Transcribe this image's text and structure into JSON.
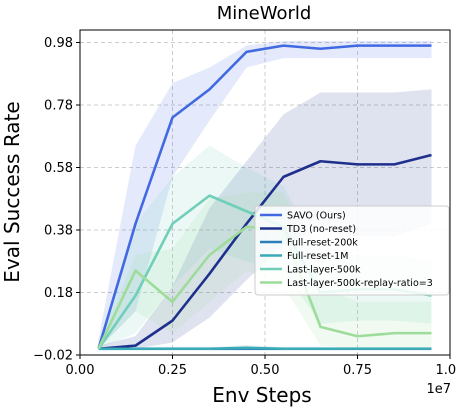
{
  "chart_data": {
    "type": "line",
    "title": "MineWorld",
    "xlabel": "Env Steps",
    "ylabel": "Eval Success Rate",
    "x_multiplier_label": "1e7",
    "xlim": [
      0.0,
      1.0
    ],
    "ylim": [
      -0.02,
      1.02
    ],
    "xticks": [
      0.0,
      0.25,
      0.5,
      0.75,
      1.0
    ],
    "xtick_labels": [
      "0.00",
      "0.25",
      "0.50",
      "0.75",
      "1.00"
    ],
    "yticks": [
      -0.02,
      0.18,
      0.38,
      0.58,
      0.78,
      0.98
    ],
    "ytick_labels": [
      "−0.02",
      "0.18",
      "0.38",
      "0.58",
      "0.78",
      "0.98"
    ],
    "grid": true,
    "legend_position": "lower-right",
    "x": [
      0.05,
      0.15,
      0.25,
      0.35,
      0.45,
      0.55,
      0.65,
      0.75,
      0.85,
      0.95
    ],
    "series": [
      {
        "name": "SAVO (Ours)",
        "color": "#4169e1",
        "values": [
          0.0,
          0.4,
          0.74,
          0.83,
          0.95,
          0.97,
          0.96,
          0.97,
          0.97,
          0.97
        ],
        "band_upper": [
          0.03,
          0.65,
          0.85,
          0.9,
          0.97,
          0.985,
          0.985,
          0.985,
          0.985,
          0.985
        ],
        "band_lower": [
          0.0,
          0.12,
          0.55,
          0.73,
          0.9,
          0.93,
          0.93,
          0.93,
          0.93,
          0.93
        ]
      },
      {
        "name": "TD3 (no-reset)",
        "color": "#1f2f8c",
        "values": [
          0.0,
          0.01,
          0.09,
          0.24,
          0.4,
          0.55,
          0.6,
          0.59,
          0.59,
          0.62
        ],
        "band_upper": [
          0.01,
          0.04,
          0.2,
          0.45,
          0.6,
          0.75,
          0.82,
          0.82,
          0.82,
          0.83
        ],
        "band_lower": [
          0.0,
          0.0,
          0.02,
          0.1,
          0.22,
          0.33,
          0.38,
          0.36,
          0.36,
          0.4
        ]
      },
      {
        "name": "Full-reset-200k",
        "color": "#2a7fb8",
        "values": [
          0.0,
          0.0,
          0.0,
          0.0,
          0.0,
          0.0,
          0.0,
          0.0,
          0.0,
          0.0
        ],
        "band_upper": [
          0.005,
          0.005,
          0.005,
          0.005,
          0.005,
          0.005,
          0.005,
          0.005,
          0.005,
          0.005
        ],
        "band_lower": [
          -0.005,
          -0.005,
          -0.005,
          -0.005,
          -0.005,
          -0.005,
          -0.005,
          -0.005,
          -0.005,
          -0.005
        ]
      },
      {
        "name": "Full-reset-1M",
        "color": "#3aa9b8",
        "values": [
          0.0,
          0.0,
          0.0,
          0.0,
          0.003,
          0.0,
          0.0,
          0.0,
          0.0,
          0.0
        ],
        "band_upper": [
          0.005,
          0.005,
          0.005,
          0.005,
          0.012,
          0.005,
          0.005,
          0.005,
          0.005,
          0.005
        ],
        "band_lower": [
          -0.005,
          -0.005,
          -0.005,
          -0.005,
          -0.005,
          -0.005,
          -0.005,
          -0.005,
          -0.005,
          -0.005
        ]
      },
      {
        "name": "Last-layer-500k",
        "color": "#6fcfb8",
        "values": [
          0.0,
          0.17,
          0.4,
          0.49,
          0.44,
          0.39,
          0.18,
          0.19,
          0.19,
          0.17
        ],
        "band_upper": [
          0.01,
          0.4,
          0.55,
          0.65,
          0.58,
          0.52,
          0.3,
          0.3,
          0.3,
          0.28
        ],
        "band_lower": [
          0.0,
          0.05,
          0.2,
          0.32,
          0.28,
          0.25,
          0.08,
          0.09,
          0.09,
          0.08
        ]
      },
      {
        "name": "Last-layer-500k-replay-ratio=3",
        "color": "#9ddc9a",
        "values": [
          0.0,
          0.25,
          0.15,
          0.3,
          0.39,
          0.38,
          0.07,
          0.04,
          0.05,
          0.05
        ],
        "band_upper": [
          0.01,
          0.3,
          0.32,
          0.48,
          0.5,
          0.5,
          0.2,
          0.15,
          0.15,
          0.15
        ],
        "band_lower": [
          0.0,
          0.12,
          0.05,
          0.15,
          0.25,
          0.2,
          0.01,
          0.0,
          0.0,
          0.0
        ]
      }
    ]
  }
}
